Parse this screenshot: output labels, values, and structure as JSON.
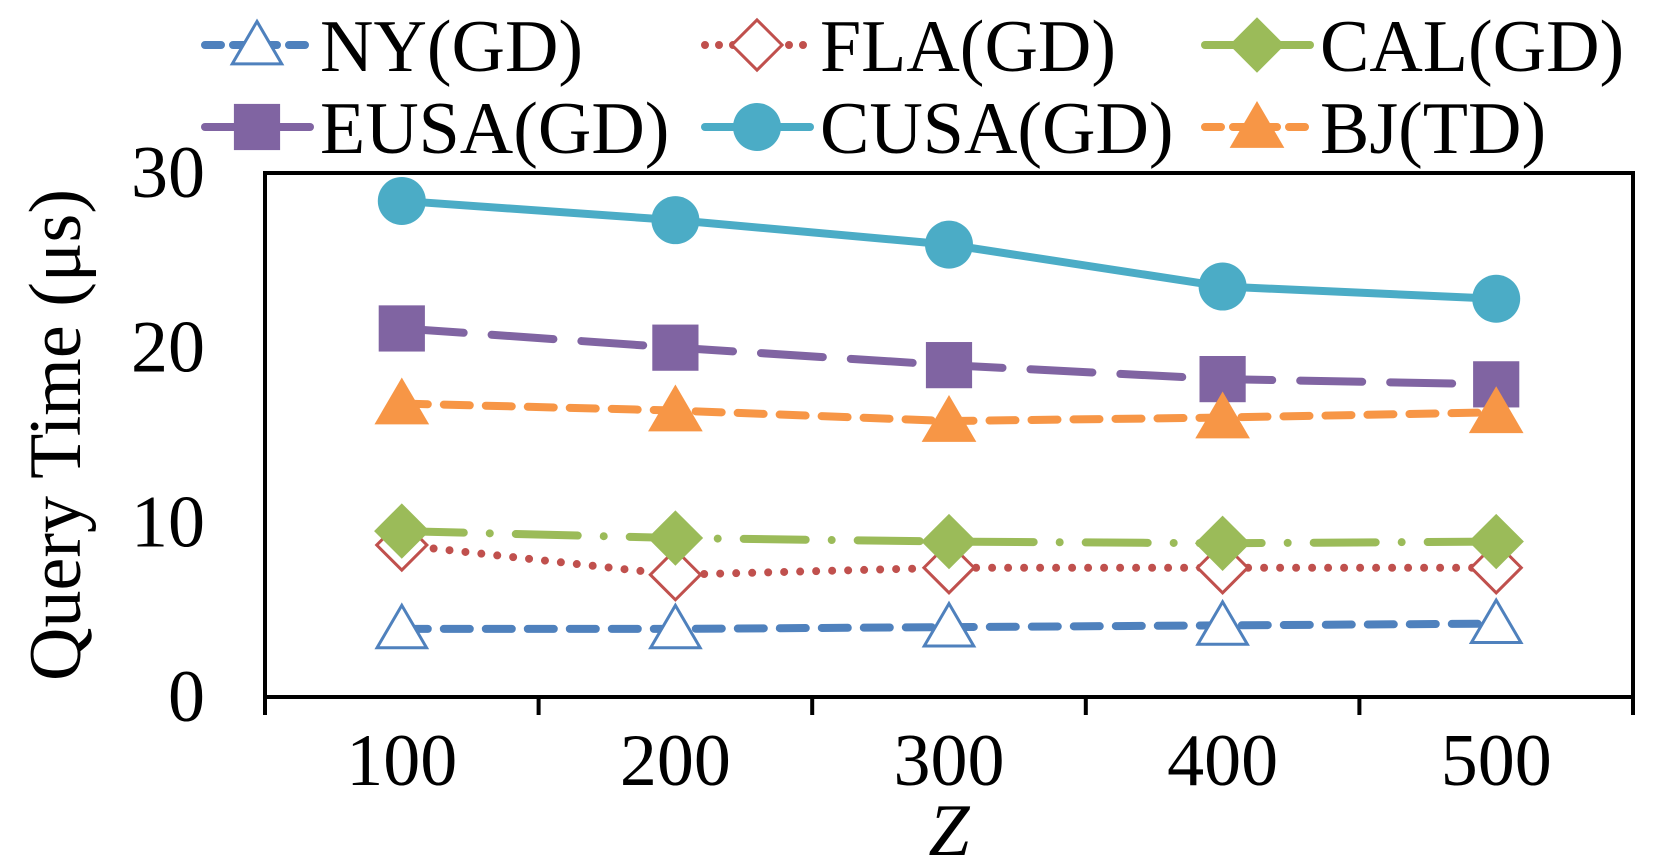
{
  "chart_data": {
    "type": "line",
    "title": "",
    "xlabel": "Z",
    "ylabel": "Query Time (μs)",
    "categories": [
      "100",
      "200",
      "300",
      "400",
      "500"
    ],
    "ylim": [
      0,
      30
    ],
    "yticks": [
      "0",
      "10",
      "20",
      "30"
    ],
    "grid": false,
    "legend_position": "top",
    "series": [
      {
        "name": "NY(GD)",
        "values": [
          3.9,
          3.9,
          4.0,
          4.1,
          4.2
        ],
        "color": "#4F81BD",
        "marker": "triangle-open",
        "dash": "dashed"
      },
      {
        "name": "FLA(GD)",
        "values": [
          8.7,
          7.0,
          7.4,
          7.4,
          7.4
        ],
        "color": "#C0504D",
        "marker": "diamond-open",
        "dash": "dotted"
      },
      {
        "name": "CAL(GD)",
        "values": [
          9.5,
          9.1,
          8.9,
          8.8,
          8.9
        ],
        "color": "#9BBB59",
        "marker": "diamond",
        "dash": "longdashdot"
      },
      {
        "name": "EUSA(GD)",
        "values": [
          21.1,
          20.0,
          19.0,
          18.2,
          17.9
        ],
        "color": "#8064A2",
        "marker": "square",
        "dash": "longdash"
      },
      {
        "name": "CUSA(GD)",
        "values": [
          28.4,
          27.3,
          25.9,
          23.5,
          22.8
        ],
        "color": "#4BACC6",
        "marker": "circle",
        "dash": "solid"
      },
      {
        "name": "BJ(TD)",
        "values": [
          16.8,
          16.4,
          15.8,
          16.0,
          16.3
        ],
        "color": "#F79646",
        "marker": "triangle",
        "dash": "dashed"
      }
    ]
  }
}
